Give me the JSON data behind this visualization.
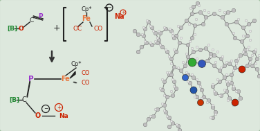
{
  "background_color": "#dde8dd",
  "border_color": "#9aba9a",
  "colors": {
    "P": "#9933cc",
    "Fe": "#e8733a",
    "O": "#cc2200",
    "C": "#222222",
    "B": "#228833",
    "Na": "#cc2200",
    "bracket": "#222222",
    "arrow": "#333333",
    "gray_bond": "#808080",
    "gray_atom": "#b0b0b0",
    "white_atom": "#e8e8e8",
    "blue_atom": "#3355aa",
    "green_atom": "#33aa33",
    "red_atom": "#cc2200",
    "dark_atom": "#555555"
  },
  "reactant1": {
    "label_B": "[B]",
    "label_O": "O",
    "label_C": "C",
    "label_P": "P"
  },
  "reactant2": {
    "label_Cp": "Cp*",
    "label_Fe": "Fe",
    "label_OC_left": "OC",
    "label_OC_right": "CO",
    "charge": "−",
    "counterion": "Na",
    "counterion_charge": "+"
  },
  "product": {
    "label_B": "[B]",
    "label_C": "C",
    "label_P": "P",
    "label_Fe": "Fe",
    "label_Cp": "Cp*",
    "label_CO1": "CO",
    "label_CO2": "CO",
    "label_O": "O",
    "label_Na": "Na",
    "charge_minus": "−",
    "charge_plus": "+"
  }
}
